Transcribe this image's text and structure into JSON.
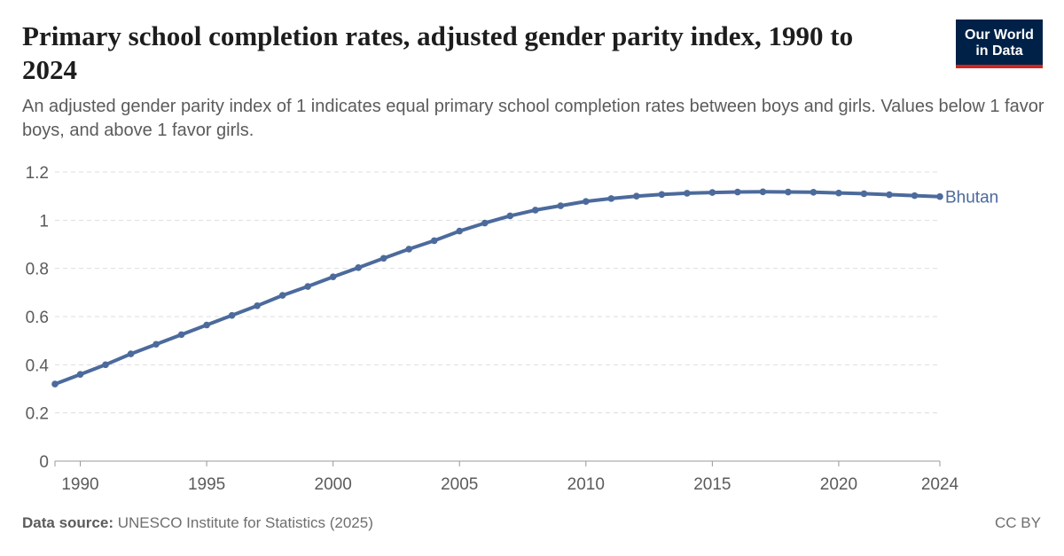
{
  "header": {
    "title": "Primary school completion rates, adjusted gender parity index, 1990 to 2024",
    "subtitle": "An adjusted gender parity index of 1 indicates equal primary school completion rates between boys and girls. Values below 1 favor boys, and above 1 favor girls."
  },
  "logo": {
    "line1": "Our World",
    "line2": "in Data"
  },
  "footer": {
    "source_label": "Data source:",
    "source_text": "UNESCO Institute for Statistics (2025)",
    "license": "CC BY"
  },
  "colors": {
    "series": "#4c6a9c",
    "grid": "#dddddd",
    "axis": "#666666",
    "text": "#5b5b5b"
  },
  "chart_data": {
    "type": "line",
    "title": "Primary school completion rates, adjusted gender parity index, 1990 to 2024",
    "xlabel": "",
    "ylabel": "",
    "xlim": [
      1989,
      2024
    ],
    "ylim": [
      0,
      1.2
    ],
    "x_ticks": [
      1990,
      1995,
      2000,
      2005,
      2010,
      2015,
      2020,
      2024
    ],
    "y_ticks": [
      0,
      0.2,
      0.4,
      0.6,
      0.8,
      1,
      1.2
    ],
    "y_tick_labels": [
      "0",
      "0.2",
      "0.4",
      "0.6",
      "0.8",
      "1",
      "1.2"
    ],
    "grid": true,
    "legend": "inline-end-label",
    "series": [
      {
        "name": "Bhutan",
        "x": [
          1989,
          1990,
          1991,
          1992,
          1993,
          1994,
          1995,
          1996,
          1997,
          1998,
          1999,
          2000,
          2001,
          2002,
          2003,
          2004,
          2005,
          2006,
          2007,
          2008,
          2009,
          2010,
          2011,
          2012,
          2013,
          2014,
          2015,
          2016,
          2017,
          2018,
          2019,
          2020,
          2021,
          2022,
          2023,
          2024
        ],
        "values": [
          0.32,
          0.36,
          0.4,
          0.445,
          0.485,
          0.525,
          0.565,
          0.605,
          0.645,
          0.688,
          0.725,
          0.765,
          0.803,
          0.842,
          0.88,
          0.915,
          0.955,
          0.988,
          1.018,
          1.042,
          1.06,
          1.078,
          1.09,
          1.1,
          1.107,
          1.112,
          1.115,
          1.117,
          1.118,
          1.117,
          1.116,
          1.113,
          1.11,
          1.106,
          1.102,
          1.098
        ]
      }
    ]
  }
}
